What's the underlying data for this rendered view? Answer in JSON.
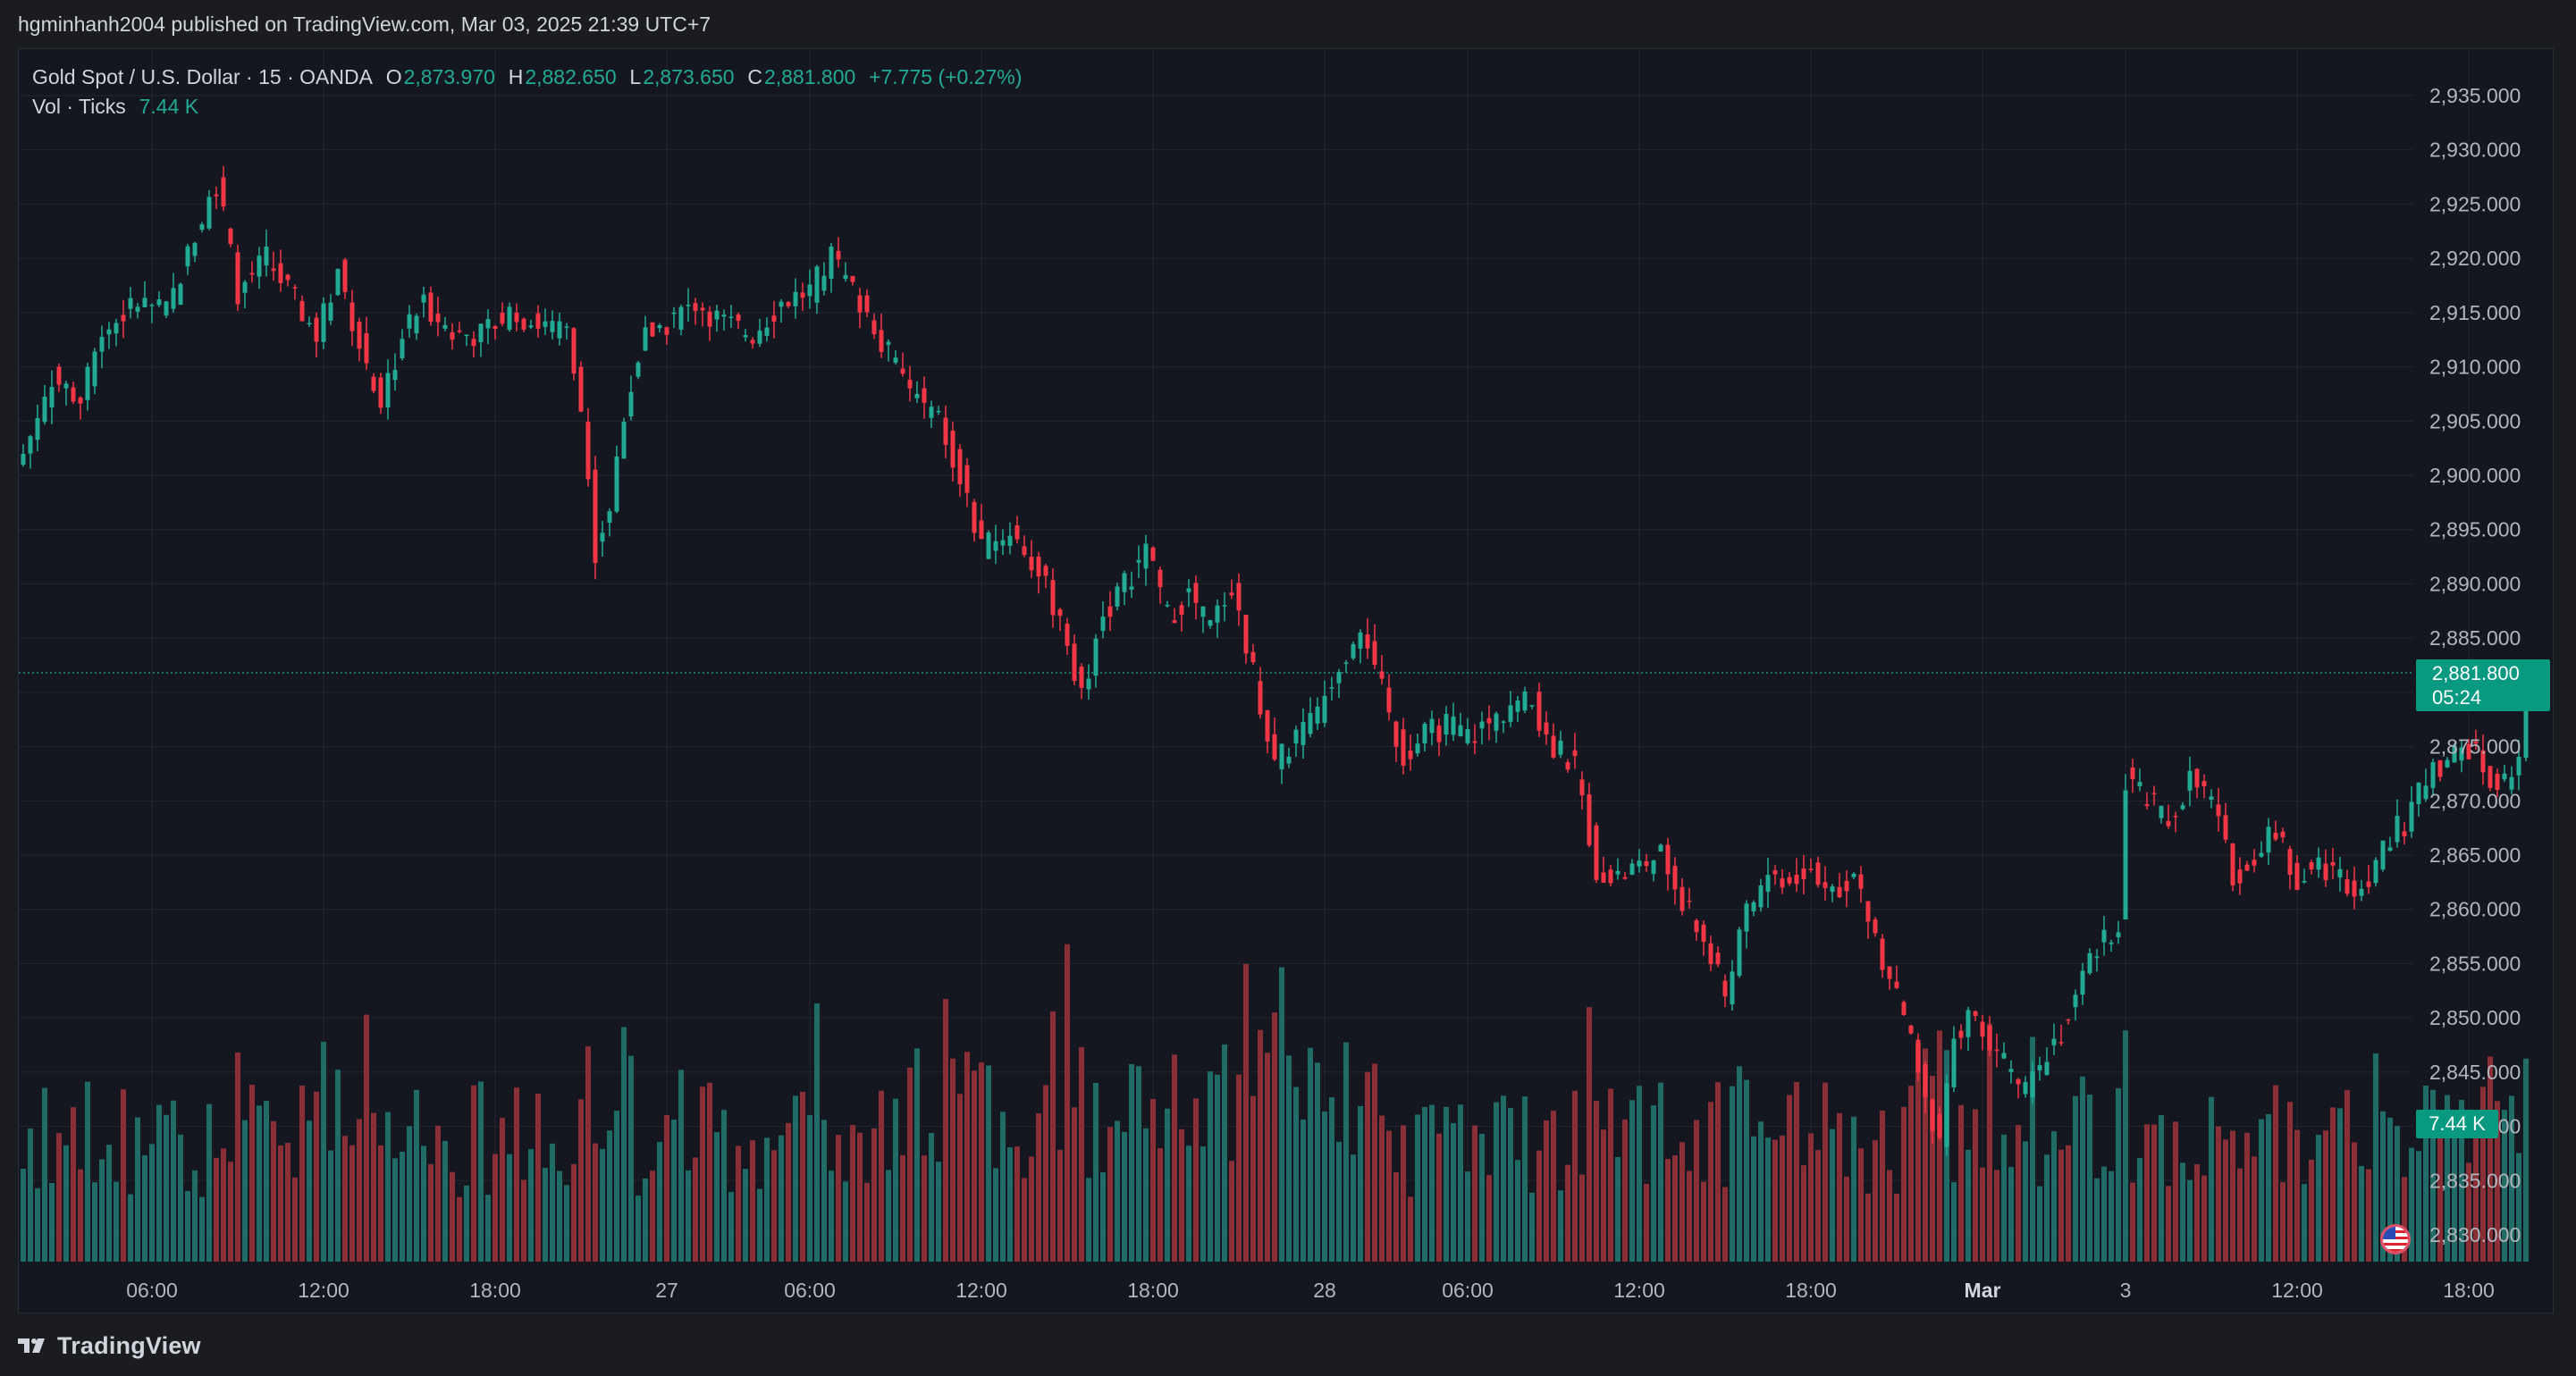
{
  "header": {
    "publisher_text": "hgminhanh2004 published on TradingView.com, Mar 03, 2025 21:39 UTC+7"
  },
  "legend": {
    "symbol": "Gold Spot / U.S. Dollar · 15 · OANDA",
    "open_label": "O",
    "open": "2,873.970",
    "high_label": "H",
    "high": "2,882.650",
    "low_label": "L",
    "low": "2,873.650",
    "close_label": "C",
    "close": "2,881.800",
    "change": "+7.775 (+0.27%)",
    "vol_label": "Vol · Ticks",
    "vol_value": "7.44 K"
  },
  "price_tag": {
    "price": "2,881.800",
    "countdown": "05:24"
  },
  "volume_tag": "7.44 K",
  "footer": {
    "brand": "TradingView"
  },
  "colors": {
    "up": "#22ab94",
    "down": "#f23645",
    "up_volume": "#1f6d66",
    "down_volume": "#8b2f37",
    "background": "#141720",
    "grid": "#23272f",
    "axis_text": "#b2b5be"
  },
  "chart_data": {
    "type": "candlestick",
    "title": "Gold Spot / U.S. Dollar · 15 · OANDA",
    "interval": "15",
    "ylim": [
      2827.5,
      2937.5
    ],
    "y_ticks": [
      "2,830.000",
      "2,835.000",
      "2,840.000",
      "2,845.000",
      "2,850.000",
      "2,855.000",
      "2,860.000",
      "2,865.000",
      "2,870.000",
      "2,875.000",
      "2,880.000",
      "2,885.000",
      "2,890.000",
      "2,895.000",
      "2,900.000",
      "2,905.000",
      "2,910.000",
      "2,915.000",
      "2,920.000",
      "2,925.000",
      "2,930.000",
      "2,935.000"
    ],
    "x_ticks": [
      {
        "label": "06:00",
        "index": 18
      },
      {
        "label": "12:00",
        "index": 42
      },
      {
        "label": "18:00",
        "index": 66
      },
      {
        "label": "27",
        "index": 90,
        "bold": false
      },
      {
        "label": "06:00",
        "index": 110
      },
      {
        "label": "12:00",
        "index": 134
      },
      {
        "label": "18:00",
        "index": 158
      },
      {
        "label": "28",
        "index": 182
      },
      {
        "label": "06:00",
        "index": 202
      },
      {
        "label": "12:00",
        "index": 226
      },
      {
        "label": "18:00",
        "index": 250
      },
      {
        "label": "Mar",
        "index": 274,
        "bold": true
      },
      {
        "label": "3",
        "index": 294
      },
      {
        "label": "12:00",
        "index": 318
      },
      {
        "label": "18:00",
        "index": 342
      }
    ],
    "grid": true,
    "last_price": 2881.8,
    "anchors": [
      [
        0,
        2902
      ],
      [
        4,
        2909
      ],
      [
        8,
        2907
      ],
      [
        11,
        2913
      ],
      [
        16,
        2916
      ],
      [
        20,
        2915
      ],
      [
        24,
        2922
      ],
      [
        27,
        2927
      ],
      [
        30,
        2917
      ],
      [
        34,
        2920
      ],
      [
        38,
        2916
      ],
      [
        41,
        2913
      ],
      [
        44,
        2919
      ],
      [
        48,
        2910
      ],
      [
        50,
        2906
      ],
      [
        53,
        2913
      ],
      [
        56,
        2916
      ],
      [
        60,
        2913
      ],
      [
        64,
        2913
      ],
      [
        68,
        2915
      ],
      [
        72,
        2914
      ],
      [
        76,
        2913
      ],
      [
        78,
        2906
      ],
      [
        80,
        2893
      ],
      [
        82,
        2897
      ],
      [
        84,
        2906
      ],
      [
        87,
        2913
      ],
      [
        90,
        2914
      ],
      [
        94,
        2916
      ],
      [
        98,
        2914
      ],
      [
        102,
        2913
      ],
      [
        106,
        2916
      ],
      [
        110,
        2917
      ],
      [
        113,
        2920
      ],
      [
        116,
        2917
      ],
      [
        119,
        2914
      ],
      [
        122,
        2910
      ],
      [
        125,
        2907
      ],
      [
        128,
        2905
      ],
      [
        131,
        2900
      ],
      [
        134,
        2893
      ],
      [
        138,
        2895
      ],
      [
        141,
        2892
      ],
      [
        145,
        2887
      ],
      [
        148,
        2880
      ],
      [
        151,
        2887
      ],
      [
        154,
        2890
      ],
      [
        157,
        2893
      ],
      [
        160,
        2887
      ],
      [
        163,
        2889
      ],
      [
        166,
        2886
      ],
      [
        169,
        2890
      ],
      [
        172,
        2882
      ],
      [
        175,
        2873
      ],
      [
        178,
        2876
      ],
      [
        181,
        2878
      ],
      [
        184,
        2883
      ],
      [
        187,
        2886
      ],
      [
        190,
        2880
      ],
      [
        193,
        2874
      ],
      [
        196,
        2876
      ],
      [
        199,
        2877
      ],
      [
        202,
        2876
      ],
      [
        205,
        2877
      ],
      [
        208,
        2879
      ],
      [
        211,
        2879
      ],
      [
        214,
        2875
      ],
      [
        217,
        2873
      ],
      [
        220,
        2864
      ],
      [
        223,
        2863
      ],
      [
        226,
        2864
      ],
      [
        229,
        2865
      ],
      [
        232,
        2861
      ],
      [
        235,
        2857
      ],
      [
        238,
        2852
      ],
      [
        241,
        2860
      ],
      [
        244,
        2863
      ],
      [
        247,
        2863
      ],
      [
        250,
        2864
      ],
      [
        253,
        2862
      ],
      [
        256,
        2863
      ],
      [
        259,
        2857
      ],
      [
        262,
        2852
      ],
      [
        265,
        2845
      ],
      [
        268,
        2838
      ],
      [
        270,
        2848
      ],
      [
        272,
        2850
      ],
      [
        275,
        2848
      ],
      [
        278,
        2845
      ],
      [
        280,
        2843
      ],
      [
        283,
        2847
      ],
      [
        286,
        2850
      ],
      [
        289,
        2855
      ],
      [
        292,
        2858
      ],
      [
        293,
        2859
      ],
      [
        294,
        2872
      ],
      [
        297,
        2870
      ],
      [
        300,
        2868
      ],
      [
        303,
        2872
      ],
      [
        306,
        2870
      ],
      [
        309,
        2863
      ],
      [
        312,
        2865
      ],
      [
        315,
        2867
      ],
      [
        318,
        2863
      ],
      [
        321,
        2864
      ],
      [
        324,
        2863
      ],
      [
        327,
        2862
      ],
      [
        330,
        2866
      ],
      [
        333,
        2868
      ],
      [
        336,
        2872
      ],
      [
        339,
        2874
      ],
      [
        342,
        2875
      ],
      [
        345,
        2872
      ],
      [
        347,
        2872
      ],
      [
        349,
        2874
      ],
      [
        350,
        2882
      ]
    ],
    "series": [
      {
        "name": "Vol · Ticks",
        "last_value": 7440
      }
    ]
  }
}
